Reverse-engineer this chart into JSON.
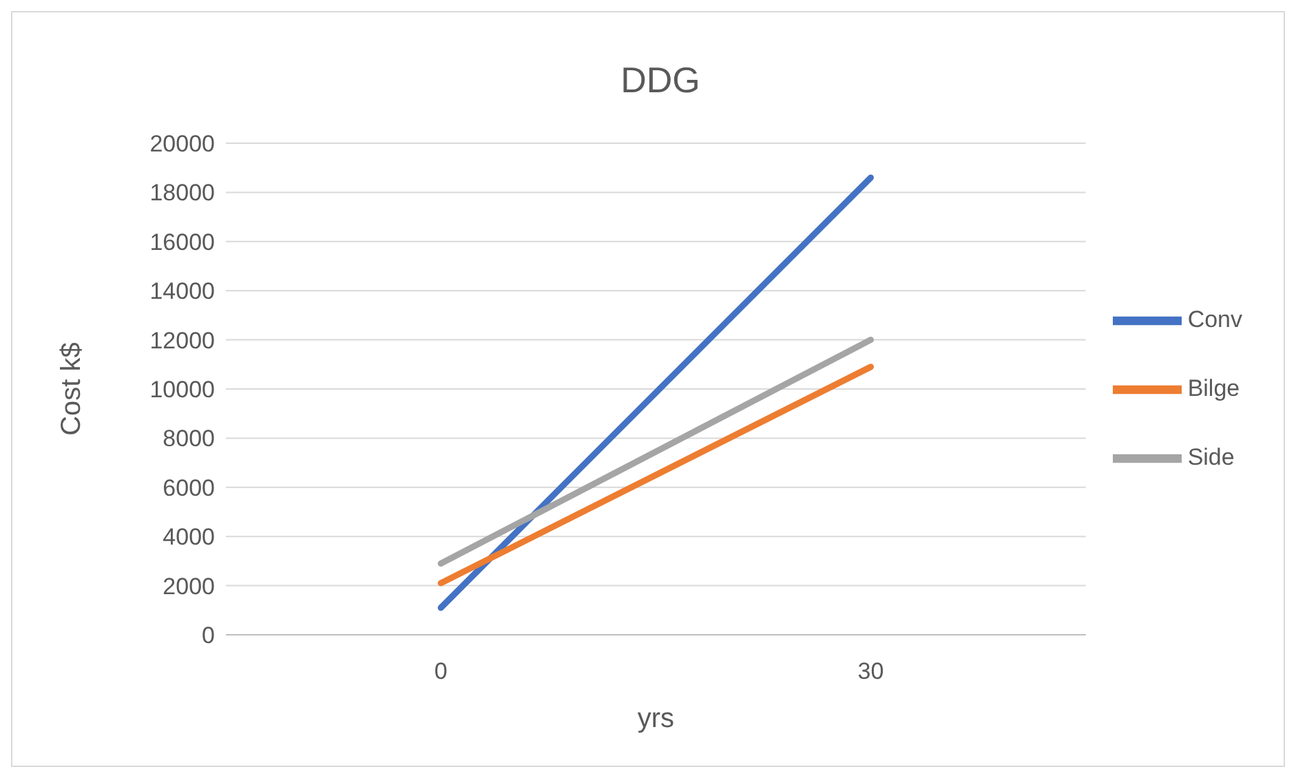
{
  "chart_data": {
    "type": "line",
    "title": "DDG",
    "xlabel": "yrs",
    "ylabel": "Cost k$",
    "categories": [
      "0",
      "30"
    ],
    "series": [
      {
        "name": "Conv",
        "color": "#4472c4",
        "values": [
          1100,
          18600
        ]
      },
      {
        "name": "Bilge",
        "color": "#ed7d31",
        "values": [
          2100,
          10900
        ]
      },
      {
        "name": "Side",
        "color": "#a5a5a5",
        "values": [
          2900,
          12000
        ]
      }
    ],
    "ylim": [
      0,
      20000
    ],
    "yticks": [
      0,
      2000,
      4000,
      6000,
      8000,
      10000,
      12000,
      14000,
      16000,
      18000,
      20000
    ],
    "grid": "y",
    "legend": "right",
    "marker": "none"
  }
}
